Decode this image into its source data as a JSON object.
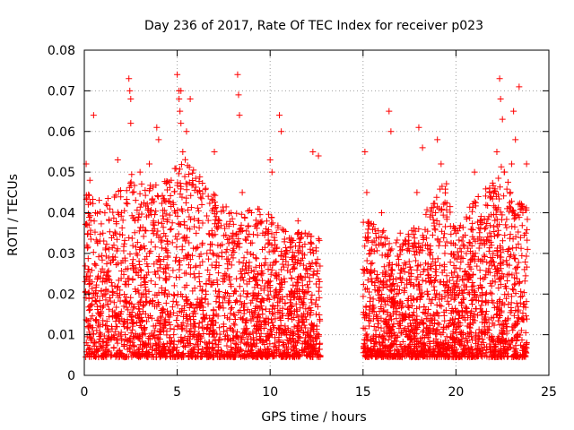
{
  "chart_data": {
    "type": "scatter",
    "title": "Day 236 of 2017, Rate Of TEC Index for receiver p023",
    "xlabel": "GPS time / hours",
    "ylabel": "ROTI / TECUs",
    "xlim": [
      0,
      25
    ],
    "ylim": [
      0,
      0.08
    ],
    "x_ticks": [
      0,
      5,
      10,
      15,
      20,
      25
    ],
    "y_ticks": [
      0,
      0.01,
      0.02,
      0.03,
      0.04,
      0.05,
      0.06,
      0.07,
      0.08
    ],
    "x_tick_labels": [
      "0",
      "5",
      "10",
      "15",
      "20",
      "25"
    ],
    "y_tick_labels": [
      "0",
      "0.01",
      "0.02",
      "0.03",
      "0.04",
      "0.05",
      "0.06",
      "0.07",
      "0.08"
    ],
    "grid": true,
    "marker": "+",
    "marker_color": "#ff0000",
    "data_gap_hours": [
      12.7,
      15.0
    ],
    "density_profile": {
      "x": [
        0,
        1,
        2,
        2.5,
        3,
        4,
        5,
        5.5,
        6,
        7,
        7.5,
        8,
        9,
        10,
        11,
        12,
        12.7,
        15,
        16,
        17,
        18,
        19,
        19.5,
        20,
        21,
        22,
        22.5,
        23,
        23.8
      ],
      "typical_max": [
        0.045,
        0.043,
        0.046,
        0.05,
        0.048,
        0.047,
        0.052,
        0.055,
        0.05,
        0.045,
        0.042,
        0.04,
        0.042,
        0.04,
        0.036,
        0.035,
        0.034,
        0.04,
        0.036,
        0.034,
        0.038,
        0.045,
        0.048,
        0.036,
        0.044,
        0.048,
        0.052,
        0.045,
        0.042
      ]
    },
    "series": [
      {
        "name": "ROTI",
        "x": [
          0.1,
          0.2,
          0.3,
          0.4,
          0.5,
          0.6,
          0.8,
          1.0,
          1.2,
          1.5,
          1.7,
          1.8,
          2.0,
          2.2,
          2.4,
          2.45,
          2.5,
          2.5,
          2.6,
          2.8,
          3.0,
          3.2,
          3.5,
          3.8,
          3.9,
          4.0,
          4.1,
          4.5,
          4.8,
          5.0,
          5.1,
          5.1,
          5.15,
          5.2,
          5.2,
          5.3,
          5.5,
          5.7,
          5.9,
          6.1,
          6.4,
          6.6,
          7.0,
          7.2,
          7.5,
          7.8,
          8.0,
          8.25,
          8.3,
          8.35,
          8.5,
          8.8,
          9.0,
          9.3,
          9.6,
          10.0,
          10.1,
          10.5,
          10.6,
          10.8,
          11.0,
          11.5,
          12.0,
          12.3,
          12.6,
          15.1,
          15.2,
          15.4,
          15.6,
          16.0,
          16.4,
          16.5,
          16.8,
          17.0,
          17.3,
          17.6,
          17.9,
          18.0,
          18.2,
          18.5,
          18.9,
          19.0,
          19.2,
          19.4,
          19.6,
          19.8,
          20.0,
          20.3,
          20.6,
          21.0,
          21.3,
          21.6,
          21.8,
          22.0,
          22.2,
          22.35,
          22.4,
          22.5,
          22.6,
          22.8,
          23.0,
          23.1,
          23.2,
          23.4,
          23.6,
          23.8
        ],
        "y": [
          0.052,
          0.012,
          0.048,
          0.009,
          0.064,
          0.04,
          0.015,
          0.035,
          0.008,
          0.022,
          0.012,
          0.053,
          0.04,
          0.01,
          0.073,
          0.07,
          0.068,
          0.062,
          0.045,
          0.03,
          0.05,
          0.02,
          0.052,
          0.011,
          0.061,
          0.058,
          0.034,
          0.015,
          0.042,
          0.074,
          0.07,
          0.068,
          0.065,
          0.062,
          0.07,
          0.055,
          0.06,
          0.068,
          0.025,
          0.045,
          0.015,
          0.03,
          0.055,
          0.038,
          0.012,
          0.028,
          0.035,
          0.074,
          0.069,
          0.064,
          0.045,
          0.02,
          0.04,
          0.012,
          0.035,
          0.053,
          0.05,
          0.064,
          0.06,
          0.03,
          0.015,
          0.038,
          0.025,
          0.055,
          0.054,
          0.055,
          0.045,
          0.03,
          0.012,
          0.04,
          0.065,
          0.06,
          0.02,
          0.035,
          0.01,
          0.025,
          0.045,
          0.061,
          0.056,
          0.02,
          0.04,
          0.058,
          0.052,
          0.03,
          0.012,
          0.02,
          0.035,
          0.01,
          0.025,
          0.05,
          0.038,
          0.015,
          0.045,
          0.03,
          0.055,
          0.073,
          0.068,
          0.063,
          0.05,
          0.02,
          0.052,
          0.065,
          0.058,
          0.071,
          0.04,
          0.052
        ]
      }
    ]
  }
}
